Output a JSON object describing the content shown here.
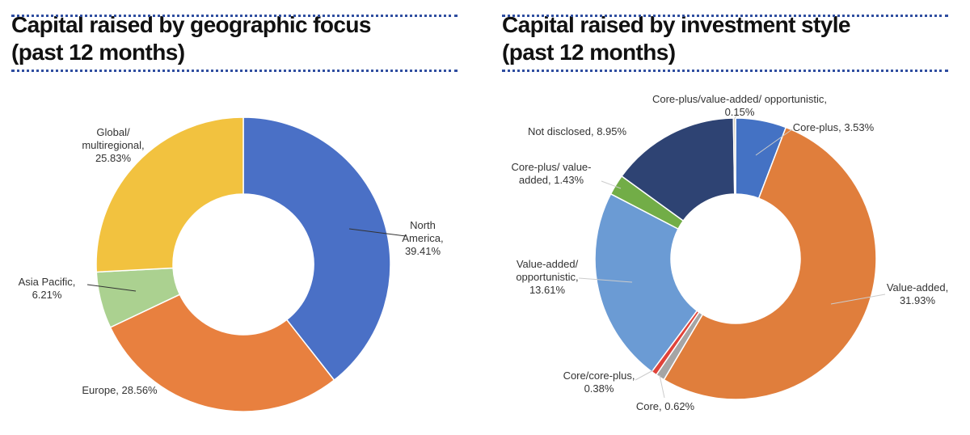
{
  "chart_data": [
    {
      "type": "donut",
      "title": [
        "Capital raised by geographic focus",
        "(past 12 months)"
      ],
      "categories": [
        "North America",
        "Europe",
        "Asia Pacific",
        "Global/ multiregional"
      ],
      "values": [
        39.41,
        28.56,
        6.21,
        25.83
      ],
      "labels": [
        "North America, 39.41%",
        "Europe, 28.56%",
        "Asia Pacific, 6.21%",
        "Global/ multiregional, 25.83%"
      ],
      "colors": [
        "#4a70c6",
        "#e8803f",
        "#abd190",
        "#f2c23f"
      ]
    },
    {
      "type": "donut",
      "title": [
        "Capital raised by investment style",
        "(past 12 months)"
      ],
      "categories": [
        "Core-plus",
        "Value-added",
        "Core",
        "Core/core-plus",
        "Value-added/ opportunistic",
        "Core-plus/ value-added",
        "Not disclosed",
        "Core-plus/value-added/ opportunistic"
      ],
      "values": [
        3.53,
        31.93,
        0.62,
        0.38,
        13.61,
        1.43,
        8.95,
        0.15
      ],
      "labels": [
        "Core-plus, 3.53%",
        "Value-added, 31.93%",
        "Core, 0.62%",
        "Core/core-plus, 0.38%",
        "Value-added/ opportunistic, 13.61%",
        "Core-plus/ value-added, 1.43%",
        "Not disclosed, 8.95%",
        "Core-plus/value-added/ opportunistic, 0.15%"
      ],
      "colors": [
        "#4472c4",
        "#e07e3c",
        "#a5a5a5",
        "#e0433a",
        "#6b9bd4",
        "#72ad47",
        "#2e4373",
        "#cfc7b0"
      ]
    }
  ]
}
